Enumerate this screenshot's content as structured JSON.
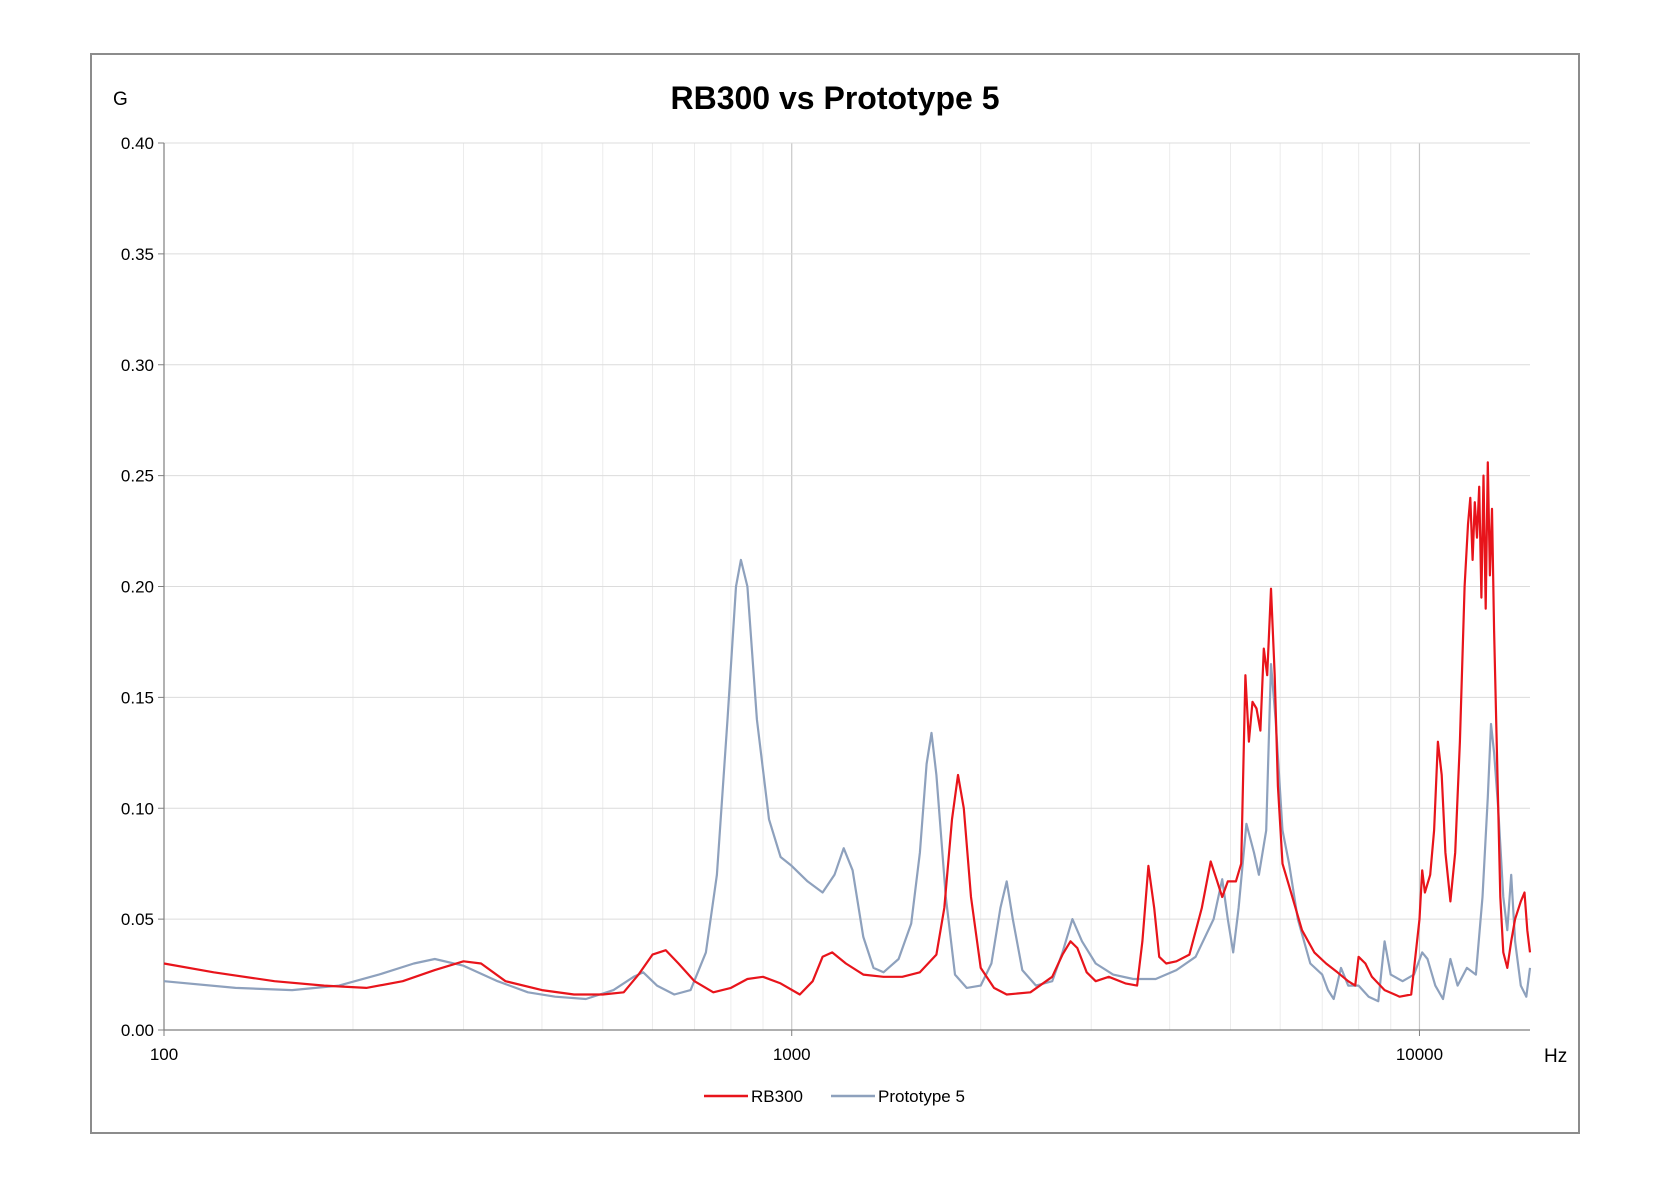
{
  "chart_data": {
    "type": "line",
    "title": "RB300 vs Prototype 5",
    "ylabel": "G",
    "xlabel": "Hz",
    "x_scale": "log",
    "xlim": [
      100,
      15000
    ],
    "ylim": [
      0,
      0.4
    ],
    "y_ticks": [
      "0.00",
      "0.05",
      "0.10",
      "0.15",
      "0.20",
      "0.25",
      "0.30",
      "0.35",
      "0.40"
    ],
    "x_ticks": [
      "100",
      "1000",
      "10000"
    ],
    "grid": true,
    "legend_position": "bottom",
    "series": [
      {
        "name": "RB300",
        "color": "#e8141b",
        "points": [
          [
            100,
            0.03
          ],
          [
            120,
            0.026
          ],
          [
            150,
            0.022
          ],
          [
            180,
            0.02
          ],
          [
            210,
            0.019
          ],
          [
            240,
            0.022
          ],
          [
            270,
            0.027
          ],
          [
            300,
            0.031
          ],
          [
            320,
            0.03
          ],
          [
            350,
            0.022
          ],
          [
            400,
            0.018
          ],
          [
            450,
            0.016
          ],
          [
            500,
            0.016
          ],
          [
            540,
            0.017
          ],
          [
            570,
            0.025
          ],
          [
            600,
            0.034
          ],
          [
            630,
            0.036
          ],
          [
            660,
            0.03
          ],
          [
            700,
            0.022
          ],
          [
            750,
            0.017
          ],
          [
            800,
            0.019
          ],
          [
            850,
            0.023
          ],
          [
            900,
            0.024
          ],
          [
            960,
            0.021
          ],
          [
            1030,
            0.016
          ],
          [
            1080,
            0.022
          ],
          [
            1120,
            0.033
          ],
          [
            1160,
            0.035
          ],
          [
            1220,
            0.03
          ],
          [
            1300,
            0.025
          ],
          [
            1400,
            0.024
          ],
          [
            1500,
            0.024
          ],
          [
            1600,
            0.026
          ],
          [
            1700,
            0.034
          ],
          [
            1750,
            0.055
          ],
          [
            1800,
            0.095
          ],
          [
            1840,
            0.115
          ],
          [
            1880,
            0.1
          ],
          [
            1930,
            0.06
          ],
          [
            2000,
            0.028
          ],
          [
            2100,
            0.019
          ],
          [
            2200,
            0.016
          ],
          [
            2400,
            0.017
          ],
          [
            2600,
            0.024
          ],
          [
            2700,
            0.034
          ],
          [
            2780,
            0.04
          ],
          [
            2850,
            0.037
          ],
          [
            2950,
            0.026
          ],
          [
            3050,
            0.022
          ],
          [
            3200,
            0.024
          ],
          [
            3400,
            0.021
          ],
          [
            3550,
            0.02
          ],
          [
            3620,
            0.04
          ],
          [
            3700,
            0.074
          ],
          [
            3780,
            0.055
          ],
          [
            3850,
            0.033
          ],
          [
            3950,
            0.03
          ],
          [
            4100,
            0.031
          ],
          [
            4300,
            0.034
          ],
          [
            4500,
            0.055
          ],
          [
            4650,
            0.076
          ],
          [
            4750,
            0.068
          ],
          [
            4850,
            0.06
          ],
          [
            4950,
            0.067
          ],
          [
            5100,
            0.067
          ],
          [
            5200,
            0.075
          ],
          [
            5280,
            0.16
          ],
          [
            5350,
            0.13
          ],
          [
            5420,
            0.148
          ],
          [
            5500,
            0.145
          ],
          [
            5580,
            0.135
          ],
          [
            5650,
            0.172
          ],
          [
            5720,
            0.16
          ],
          [
            5800,
            0.199
          ],
          [
            5880,
            0.16
          ],
          [
            5950,
            0.11
          ],
          [
            6050,
            0.075
          ],
          [
            6200,
            0.065
          ],
          [
            6500,
            0.045
          ],
          [
            6800,
            0.035
          ],
          [
            7100,
            0.03
          ],
          [
            7400,
            0.026
          ],
          [
            7700,
            0.022
          ],
          [
            7900,
            0.02
          ],
          [
            8000,
            0.033
          ],
          [
            8200,
            0.03
          ],
          [
            8400,
            0.024
          ],
          [
            8800,
            0.018
          ],
          [
            9300,
            0.015
          ],
          [
            9700,
            0.016
          ],
          [
            10000,
            0.05
          ],
          [
            10100,
            0.072
          ],
          [
            10200,
            0.062
          ],
          [
            10400,
            0.07
          ],
          [
            10550,
            0.09
          ],
          [
            10700,
            0.13
          ],
          [
            10850,
            0.115
          ],
          [
            11000,
            0.08
          ],
          [
            11200,
            0.058
          ],
          [
            11400,
            0.08
          ],
          [
            11600,
            0.13
          ],
          [
            11800,
            0.2
          ],
          [
            11950,
            0.228
          ],
          [
            12050,
            0.24
          ],
          [
            12150,
            0.212
          ],
          [
            12250,
            0.238
          ],
          [
            12350,
            0.222
          ],
          [
            12450,
            0.245
          ],
          [
            12550,
            0.195
          ],
          [
            12650,
            0.25
          ],
          [
            12750,
            0.19
          ],
          [
            12850,
            0.256
          ],
          [
            12950,
            0.205
          ],
          [
            13050,
            0.235
          ],
          [
            13150,
            0.18
          ],
          [
            13300,
            0.12
          ],
          [
            13450,
            0.06
          ],
          [
            13600,
            0.035
          ],
          [
            13800,
            0.028
          ],
          [
            14000,
            0.04
          ],
          [
            14200,
            0.05
          ],
          [
            14500,
            0.058
          ],
          [
            14700,
            0.062
          ],
          [
            14850,
            0.045
          ],
          [
            15000,
            0.035
          ]
        ]
      },
      {
        "name": "Prototype 5",
        "color": "#8ea1bd",
        "points": [
          [
            100,
            0.022
          ],
          [
            130,
            0.019
          ],
          [
            160,
            0.018
          ],
          [
            190,
            0.02
          ],
          [
            220,
            0.025
          ],
          [
            250,
            0.03
          ],
          [
            270,
            0.032
          ],
          [
            300,
            0.029
          ],
          [
            340,
            0.022
          ],
          [
            380,
            0.017
          ],
          [
            420,
            0.015
          ],
          [
            470,
            0.014
          ],
          [
            520,
            0.018
          ],
          [
            560,
            0.024
          ],
          [
            580,
            0.026
          ],
          [
            610,
            0.02
          ],
          [
            650,
            0.016
          ],
          [
            690,
            0.018
          ],
          [
            730,
            0.035
          ],
          [
            760,
            0.07
          ],
          [
            790,
            0.14
          ],
          [
            815,
            0.2
          ],
          [
            830,
            0.212
          ],
          [
            850,
            0.2
          ],
          [
            880,
            0.14
          ],
          [
            920,
            0.095
          ],
          [
            960,
            0.078
          ],
          [
            1000,
            0.074
          ],
          [
            1060,
            0.067
          ],
          [
            1120,
            0.062
          ],
          [
            1170,
            0.07
          ],
          [
            1210,
            0.082
          ],
          [
            1250,
            0.072
          ],
          [
            1300,
            0.042
          ],
          [
            1350,
            0.028
          ],
          [
            1400,
            0.026
          ],
          [
            1480,
            0.032
          ],
          [
            1550,
            0.048
          ],
          [
            1600,
            0.08
          ],
          [
            1640,
            0.12
          ],
          [
            1670,
            0.134
          ],
          [
            1700,
            0.115
          ],
          [
            1760,
            0.06
          ],
          [
            1820,
            0.025
          ],
          [
            1900,
            0.019
          ],
          [
            2000,
            0.02
          ],
          [
            2080,
            0.03
          ],
          [
            2150,
            0.055
          ],
          [
            2200,
            0.067
          ],
          [
            2250,
            0.05
          ],
          [
            2330,
            0.027
          ],
          [
            2450,
            0.02
          ],
          [
            2600,
            0.022
          ],
          [
            2700,
            0.035
          ],
          [
            2800,
            0.05
          ],
          [
            2900,
            0.04
          ],
          [
            3050,
            0.03
          ],
          [
            3250,
            0.025
          ],
          [
            3500,
            0.023
          ],
          [
            3800,
            0.023
          ],
          [
            4100,
            0.027
          ],
          [
            4400,
            0.033
          ],
          [
            4700,
            0.05
          ],
          [
            4850,
            0.068
          ],
          [
            4950,
            0.05
          ],
          [
            5050,
            0.035
          ],
          [
            5150,
            0.055
          ],
          [
            5300,
            0.093
          ],
          [
            5450,
            0.08
          ],
          [
            5550,
            0.07
          ],
          [
            5700,
            0.09
          ],
          [
            5800,
            0.165
          ],
          [
            5900,
            0.14
          ],
          [
            6050,
            0.09
          ],
          [
            6200,
            0.075
          ],
          [
            6400,
            0.05
          ],
          [
            6700,
            0.03
          ],
          [
            7000,
            0.025
          ],
          [
            7150,
            0.018
          ],
          [
            7300,
            0.014
          ],
          [
            7500,
            0.028
          ],
          [
            7700,
            0.02
          ],
          [
            8000,
            0.02
          ],
          [
            8300,
            0.015
          ],
          [
            8600,
            0.013
          ],
          [
            8800,
            0.04
          ],
          [
            9000,
            0.025
          ],
          [
            9400,
            0.022
          ],
          [
            9800,
            0.025
          ],
          [
            10100,
            0.035
          ],
          [
            10300,
            0.032
          ],
          [
            10600,
            0.02
          ],
          [
            10900,
            0.014
          ],
          [
            11200,
            0.032
          ],
          [
            11500,
            0.02
          ],
          [
            11900,
            0.028
          ],
          [
            12300,
            0.025
          ],
          [
            12600,
            0.06
          ],
          [
            12850,
            0.105
          ],
          [
            13000,
            0.138
          ],
          [
            13150,
            0.125
          ],
          [
            13350,
            0.1
          ],
          [
            13600,
            0.06
          ],
          [
            13800,
            0.045
          ],
          [
            14000,
            0.07
          ],
          [
            14200,
            0.04
          ],
          [
            14500,
            0.02
          ],
          [
            14800,
            0.015
          ],
          [
            15000,
            0.028
          ]
        ]
      }
    ]
  }
}
